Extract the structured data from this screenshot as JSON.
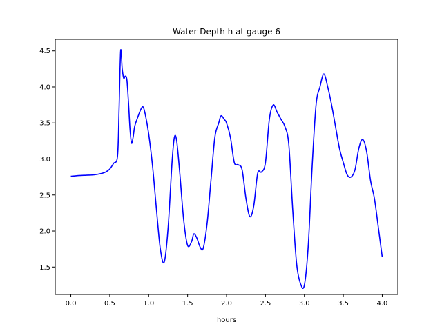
{
  "chart_data": {
    "type": "line",
    "title": "Water Depth h at gauge 6",
    "xlabel": "hours",
    "ylabel": "",
    "xlim": [
      -0.2,
      4.2
    ],
    "ylim": [
      1.12,
      4.66
    ],
    "xticks": [
      0.0,
      0.5,
      1.0,
      1.5,
      2.0,
      2.5,
      3.0,
      3.5,
      4.0
    ],
    "xtick_labels": [
      "0.0",
      "0.5",
      "1.0",
      "1.5",
      "2.0",
      "2.5",
      "3.0",
      "3.5",
      "4.0"
    ],
    "yticks": [
      1.5,
      2.0,
      2.5,
      3.0,
      3.5,
      4.0,
      4.5
    ],
    "ytick_labels": [
      "1.5",
      "2.0",
      "2.5",
      "3.0",
      "3.5",
      "4.0",
      "4.5"
    ],
    "grid": false,
    "series": [
      {
        "color": "#0000ff",
        "x": [
          0.0,
          0.1,
          0.2,
          0.3,
          0.4,
          0.45,
          0.5,
          0.55,
          0.6,
          0.62,
          0.64,
          0.66,
          0.68,
          0.7,
          0.72,
          0.74,
          0.76,
          0.78,
          0.8,
          0.82,
          0.85,
          0.9,
          0.93,
          0.96,
          1.0,
          1.05,
          1.1,
          1.15,
          1.2,
          1.25,
          1.3,
          1.33,
          1.36,
          1.4,
          1.45,
          1.5,
          1.55,
          1.58,
          1.62,
          1.66,
          1.7,
          1.75,
          1.8,
          1.85,
          1.9,
          1.93,
          1.97,
          2.0,
          2.05,
          2.1,
          2.15,
          2.2,
          2.25,
          2.3,
          2.35,
          2.4,
          2.45,
          2.5,
          2.55,
          2.6,
          2.65,
          2.7,
          2.75,
          2.8,
          2.85,
          2.9,
          2.95,
          3.0,
          3.05,
          3.1,
          3.15,
          3.2,
          3.25,
          3.3,
          3.35,
          3.4,
          3.45,
          3.5,
          3.55,
          3.6,
          3.65,
          3.7,
          3.75,
          3.8,
          3.85,
          3.9,
          3.95,
          4.0
        ],
        "y": [
          2.76,
          2.77,
          2.775,
          2.78,
          2.8,
          2.82,
          2.86,
          2.94,
          3.04,
          3.7,
          4.5,
          4.25,
          4.12,
          4.15,
          4.1,
          3.8,
          3.42,
          3.22,
          3.3,
          3.45,
          3.55,
          3.69,
          3.72,
          3.6,
          3.35,
          2.9,
          2.3,
          1.75,
          1.57,
          2.05,
          2.95,
          3.3,
          3.25,
          2.8,
          2.15,
          1.8,
          1.85,
          1.96,
          1.9,
          1.78,
          1.76,
          2.1,
          2.7,
          3.3,
          3.5,
          3.6,
          3.55,
          3.5,
          3.3,
          2.95,
          2.92,
          2.85,
          2.45,
          2.2,
          2.35,
          2.8,
          2.82,
          2.95,
          3.55,
          3.75,
          3.65,
          3.55,
          3.45,
          3.2,
          2.3,
          1.55,
          1.27,
          1.25,
          1.8,
          2.9,
          3.75,
          4.0,
          4.18,
          4.0,
          3.75,
          3.45,
          3.15,
          2.95,
          2.78,
          2.75,
          2.85,
          3.15,
          3.27,
          3.1,
          2.7,
          2.45,
          2.05,
          1.64
        ]
      }
    ]
  }
}
